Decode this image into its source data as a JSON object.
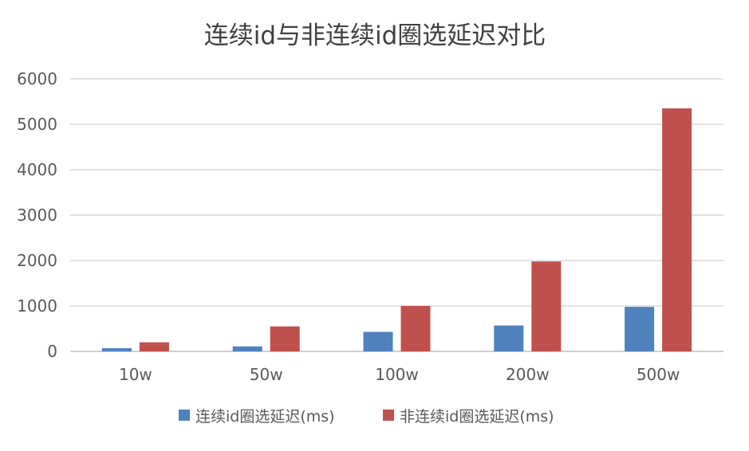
{
  "chart_data": {
    "type": "bar",
    "title": "连续id与非连续id圈选延迟对比",
    "xlabel": "",
    "ylabel": "",
    "categories": [
      "10w",
      "50w",
      "100w",
      "200w",
      "500w"
    ],
    "series": [
      {
        "name": "连续id圈选延迟(ms)",
        "color": "#4F81BD",
        "values": [
          70,
          110,
          430,
          570,
          980
        ]
      },
      {
        "name": "非连续id圈选延迟(ms)",
        "color": "#C0504D",
        "values": [
          200,
          550,
          1000,
          1980,
          5350
        ]
      }
    ],
    "ylim": [
      0,
      6000
    ],
    "yticks": [
      0,
      1000,
      2000,
      3000,
      4000,
      5000,
      6000
    ],
    "grid": true,
    "legend": "bottom"
  }
}
